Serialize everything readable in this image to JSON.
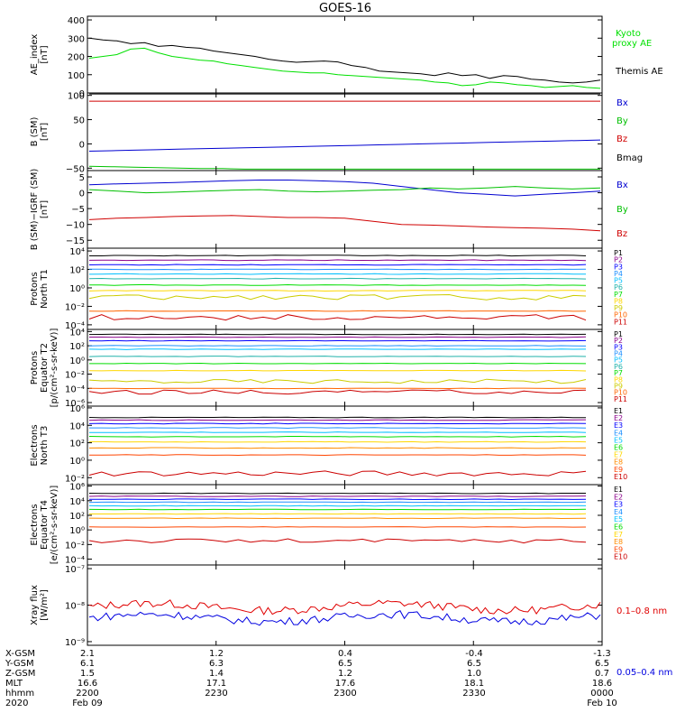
{
  "title": "GOES-16",
  "chart_data": [
    {
      "type": "line",
      "ylabel": [
        "AE_index",
        "[nT]"
      ],
      "yticks": [
        "400",
        "300",
        "200",
        "100",
        "0"
      ],
      "ylim": [
        0,
        420
      ],
      "series": [
        {
          "name": "Themis AE",
          "color": "#000000",
          "values": [
            300,
            290,
            285,
            270,
            275,
            255,
            260,
            250,
            245,
            230,
            220,
            210,
            200,
            185,
            175,
            168,
            172,
            175,
            170,
            150,
            140,
            120,
            115,
            110,
            105,
            95,
            110,
            95,
            100,
            80,
            95,
            90,
            75,
            70,
            60,
            55,
            60,
            70
          ]
        },
        {
          "name": "Kyoto proxy AE",
          "name2": "Kyoto",
          "name3": "proxy AE",
          "color": "#00e000",
          "values": [
            190,
            200,
            210,
            240,
            245,
            220,
            200,
            190,
            180,
            175,
            160,
            150,
            140,
            130,
            120,
            115,
            110,
            110,
            100,
            95,
            90,
            85,
            80,
            75,
            70,
            60,
            55,
            40,
            45,
            60,
            55,
            45,
            40,
            30,
            35,
            40,
            30,
            25
          ]
        }
      ]
    },
    {
      "type": "line",
      "ylabel": [
        "B (SM)",
        "[nT]"
      ],
      "yticks": [
        "100",
        "50",
        "0",
        "−50"
      ],
      "ylim": [
        -55,
        105
      ],
      "series": [
        {
          "name": "Bx",
          "color": "#0000d0",
          "values": [
            -15,
            -14,
            -13,
            -12,
            -11,
            -10,
            -9,
            -8,
            -7,
            -6,
            -5,
            -4,
            -3,
            -2,
            -1,
            0,
            1,
            2,
            3,
            4,
            5,
            6,
            7,
            8
          ]
        },
        {
          "name": "By",
          "color": "#00c000",
          "values": [
            -46,
            -47,
            -48,
            -49,
            -50,
            -51,
            -51,
            -52,
            -52,
            -52,
            -52,
            -52,
            -52,
            -52,
            -52,
            -52,
            -52,
            -52,
            -52,
            -52,
            -52,
            -52,
            -52,
            -52
          ]
        },
        {
          "name": "Bz",
          "color": "#d00000",
          "values": [
            88,
            88,
            88,
            88,
            88,
            88,
            88,
            88,
            88,
            88,
            88,
            88,
            88,
            88,
            88,
            88,
            88,
            88,
            88,
            88,
            88,
            88,
            88,
            88
          ]
        },
        {
          "name": "Bmag",
          "color": "#000000",
          "values": [
            103,
            103,
            103,
            103,
            103,
            103,
            103,
            103,
            103,
            103,
            103,
            103,
            103,
            103,
            103,
            103,
            103,
            103,
            103,
            103,
            103,
            103,
            103,
            103
          ]
        }
      ]
    },
    {
      "type": "line",
      "ylabel": [
        "B (SM)−IGRF (SM)",
        "[nT]"
      ],
      "yticks": [
        "5",
        "0",
        "−5",
        "−10",
        "−15"
      ],
      "ylim": [
        -17.5,
        7
      ],
      "series": [
        {
          "name": "Bx",
          "color": "#0000d0",
          "values": [
            2.5,
            2.8,
            3,
            3.2,
            3.5,
            3.8,
            4,
            4,
            3.8,
            3.5,
            3,
            2,
            1,
            0,
            -0.5,
            -1,
            -0.5,
            0,
            0.5
          ]
        },
        {
          "name": "By",
          "color": "#00c000",
          "values": [
            1,
            0.5,
            0,
            0.2,
            0.5,
            0.8,
            1,
            0.5,
            0.3,
            0.5,
            0.8,
            1,
            1.5,
            1.2,
            1.5,
            2,
            1.5,
            1.2,
            1.5
          ]
        },
        {
          "name": "Bz",
          "color": "#d00000",
          "values": [
            -8.5,
            -8,
            -7.8,
            -7.5,
            -7.3,
            -7.2,
            -7.5,
            -7.8,
            -7.8,
            -8,
            -9,
            -10,
            -10.2,
            -10.5,
            -10.8,
            -11,
            -11.2,
            -11.5,
            -12
          ]
        }
      ]
    },
    {
      "type": "line",
      "scale": "log",
      "ylabel": [
        "Protons",
        "North T1"
      ],
      "yticks": [
        "10⁴",
        "10²",
        "10⁰",
        "10⁻²",
        "10⁻⁴"
      ],
      "ylim_exp": [
        -4.5,
        4.3
      ],
      "labels": [
        "P1",
        "P2",
        "P3",
        "P4",
        "P5",
        "P6",
        "P7",
        "P8",
        "P9",
        "P10",
        "P11"
      ],
      "colors": [
        "#000000",
        "#8b008b",
        "#0000ff",
        "#1e90ff",
        "#00bfff",
        "#20b2aa",
        "#00dd00",
        "#ffd700",
        "#cccc00",
        "#ff6600",
        "#cc0000"
      ],
      "levels": [
        3.5,
        3.0,
        2.5,
        2.0,
        1.5,
        1.0,
        0.3,
        -0.3,
        -1.0,
        -2.5,
        -3.2
      ],
      "noisy_index": 8
    },
    {
      "type": "line",
      "scale": "log",
      "ylabel": [
        "Protons",
        "Equator T2",
        "[p/(cm²-s-sr-keV)]"
      ],
      "yticks": [
        "10⁴",
        "10²",
        "10⁰",
        "10⁻²",
        "10⁻⁴",
        "10⁻⁶"
      ],
      "ylim_exp": [
        -6.5,
        4.3
      ],
      "labels": [
        "P1",
        "P2",
        "P3",
        "P4",
        "P5",
        "P6",
        "P7",
        "P8",
        "P9",
        "P10",
        "P11"
      ],
      "colors": [
        "#000000",
        "#8b008b",
        "#0000ff",
        "#1e90ff",
        "#00bfff",
        "#20b2aa",
        "#00dd00",
        "#ffd700",
        "#cccc00",
        "#ff6600",
        "#cc0000"
      ],
      "levels": [
        3.6,
        3.2,
        2.7,
        2.0,
        1.5,
        0.5,
        -0.5,
        -1.5,
        -3.0,
        -4.0,
        -4.5
      ],
      "noisy_index": 8
    },
    {
      "type": "line",
      "scale": "log",
      "ylabel": [
        "Electrons",
        "North T3"
      ],
      "yticks": [
        "10⁶",
        "10⁴",
        "10²",
        "10⁰",
        "10⁻²"
      ],
      "ylim_exp": [
        -2.8,
        6.2
      ],
      "labels": [
        "E1",
        "E2",
        "E3",
        "E4",
        "E5",
        "E6",
        "E7",
        "E8",
        "E9",
        "E10"
      ],
      "colors": [
        "#000000",
        "#8b008b",
        "#0000ff",
        "#1e90ff",
        "#00bfff",
        "#00dd00",
        "#ffd700",
        "#ff8c00",
        "#ff4500",
        "#cc0000"
      ],
      "levels": [
        4.9,
        4.6,
        4.2,
        3.7,
        3.2,
        2.7,
        2.1,
        1.4,
        0.6,
        -1.5
      ],
      "noisy_index": 9
    },
    {
      "type": "line",
      "scale": "log",
      "ylabel": [
        "Electrons",
        "Equator T4",
        "[e/(cm²-s-sr-keV)]"
      ],
      "yticks": [
        "10⁶",
        "10⁴",
        "10²",
        "10⁰",
        "10⁻²",
        "10⁻⁴"
      ],
      "ylim_exp": [
        -4.8,
        6.2
      ],
      "labels": [
        "E1",
        "E2",
        "E3",
        "E4",
        "E5",
        "E6",
        "E7",
        "E8",
        "E9",
        "E10"
      ],
      "colors": [
        "#000000",
        "#8b008b",
        "#0000ff",
        "#1e90ff",
        "#00bfff",
        "#00dd00",
        "#ffd700",
        "#ff8c00",
        "#ff4500",
        "#cc0000"
      ],
      "levels": [
        5.0,
        4.6,
        4.2,
        3.8,
        3.3,
        2.8,
        2.2,
        1.6,
        0.4,
        -1.5
      ],
      "noisy_index": 9
    },
    {
      "type": "line",
      "scale": "log",
      "ylabel": [
        "Xray flux",
        "[W/m²]"
      ],
      "yticks": [
        "10⁻⁷",
        "10⁻⁸",
        "10⁻⁹"
      ],
      "ylim_exp": [
        -9.1,
        -6.9
      ],
      "series": [
        {
          "name": "0.1–0.8 nm",
          "color": "#e00000",
          "base": -8.05
        },
        {
          "name": "0.05–0.4 nm",
          "color": "#0000e0",
          "base": -8.35
        }
      ]
    }
  ],
  "ephemeris": {
    "rows": [
      {
        "label": "X-GSM",
        "values": [
          "2.1",
          "1.2",
          "0.4",
          "-0.4",
          "-1.3"
        ]
      },
      {
        "label": "Y-GSM",
        "values": [
          "6.1",
          "6.3",
          "6.5",
          "6.5",
          "6.5"
        ]
      },
      {
        "label": "Z-GSM",
        "values": [
          "1.5",
          "1.4",
          "1.2",
          "1.0",
          "0.7"
        ]
      },
      {
        "label": "MLT",
        "values": [
          "16.6",
          "17.1",
          "17.6",
          "18.1",
          "18.6"
        ]
      },
      {
        "label": "hhmm",
        "values": [
          "2200",
          "2230",
          "2300",
          "2330",
          "0000"
        ]
      },
      {
        "label": "2020",
        "values": [
          "Feb 09",
          "",
          "",
          "",
          "Feb 10"
        ]
      }
    ]
  }
}
